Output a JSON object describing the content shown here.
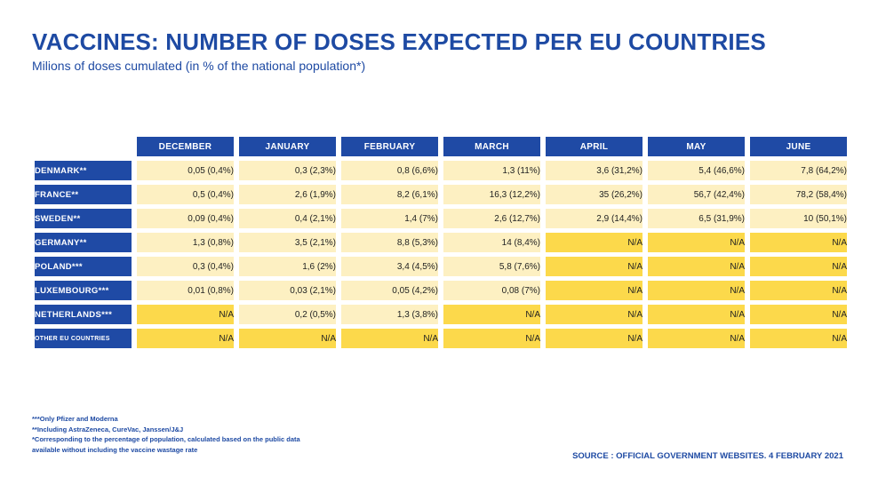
{
  "title": "VACCINES: NUMBER OF DOSES EXPECTED PER EU COUNTRIES",
  "subtitle": "Milions of doses cumulated (in % of the national population*)",
  "colors": {
    "header_blue": "#1f4aa5",
    "known_value_bg": "#fdf0c2",
    "na_bg": "#fcd94b",
    "text_blue": "#1e4aa3"
  },
  "table": {
    "columns": [
      "DECEMBER",
      "JANUARY",
      "FEBRUARY",
      "MARCH",
      "APRIL",
      "MAY",
      "JUNE"
    ],
    "rows": [
      {
        "country": "DENMARK**",
        "values": [
          "0,05 (0,4%)",
          "0,3 (2,3%)",
          "0,8 (6,6%)",
          "1,3 (11%)",
          "3,6 (31,2%)",
          "5,4  (46,6%)",
          "7,8 (64,2%)"
        ]
      },
      {
        "country": "FRANCE**",
        "values": [
          "0,5 (0,4%)",
          "2,6 (1,9%)",
          "8,2 (6,1%)",
          "16,3 (12,2%)",
          "35 (26,2%)",
          "56,7 (42,4%)",
          "78,2 (58,4%)"
        ]
      },
      {
        "country": "SWEDEN**",
        "values": [
          "0,09 (0,4%)",
          "0,4 (2,1%)",
          "1,4 (7%)",
          "2,6 (12,7%)",
          "2,9 (14,4%)",
          "6,5 (31,9%)",
          "10 (50,1%)"
        ]
      },
      {
        "country": "GERMANY**",
        "values": [
          "1,3 (0,8%)",
          "3,5 (2,1%)",
          "8,8 (5,3%)",
          "14 (8,4%)",
          "N/A",
          "N/A",
          "N/A"
        ]
      },
      {
        "country": "POLAND***",
        "values": [
          "0,3 (0,4%)",
          "1,6 (2%)",
          "3,4 (4,5%)",
          "5,8 (7,6%)",
          "N/A",
          "N/A",
          "N/A"
        ]
      },
      {
        "country": "LUXEMBOURG***",
        "values": [
          "0,01 (0,8%)",
          "0,03 (2,1%)",
          "0,05 (4,2%)",
          "0,08 (7%)",
          "N/A",
          "N/A",
          "N/A"
        ]
      },
      {
        "country": "NETHERLANDS***",
        "values": [
          "N/A",
          "0,2 (0,5%)",
          "1,3 (3,8%)",
          "N/A",
          "N/A",
          "N/A",
          "N/A"
        ]
      },
      {
        "country": "OTHER EU COUNTRIES",
        "values": [
          "N/A",
          "N/A",
          "N/A",
          "N/A",
          "N/A",
          "N/A",
          "N/A"
        ]
      }
    ]
  },
  "notes": [
    "***Only Pfizer and Moderna",
    "**Including AstraZeneca, CureVac, Janssen/J&J",
    "*Corresponding to the percentage of population, calculated based on the public data",
    "available without including the vaccine wastage rate"
  ],
  "source": "SOURCE : OFFICIAL GOVERNMENT WEBSITES. 4 FEBRUARY 2021"
}
